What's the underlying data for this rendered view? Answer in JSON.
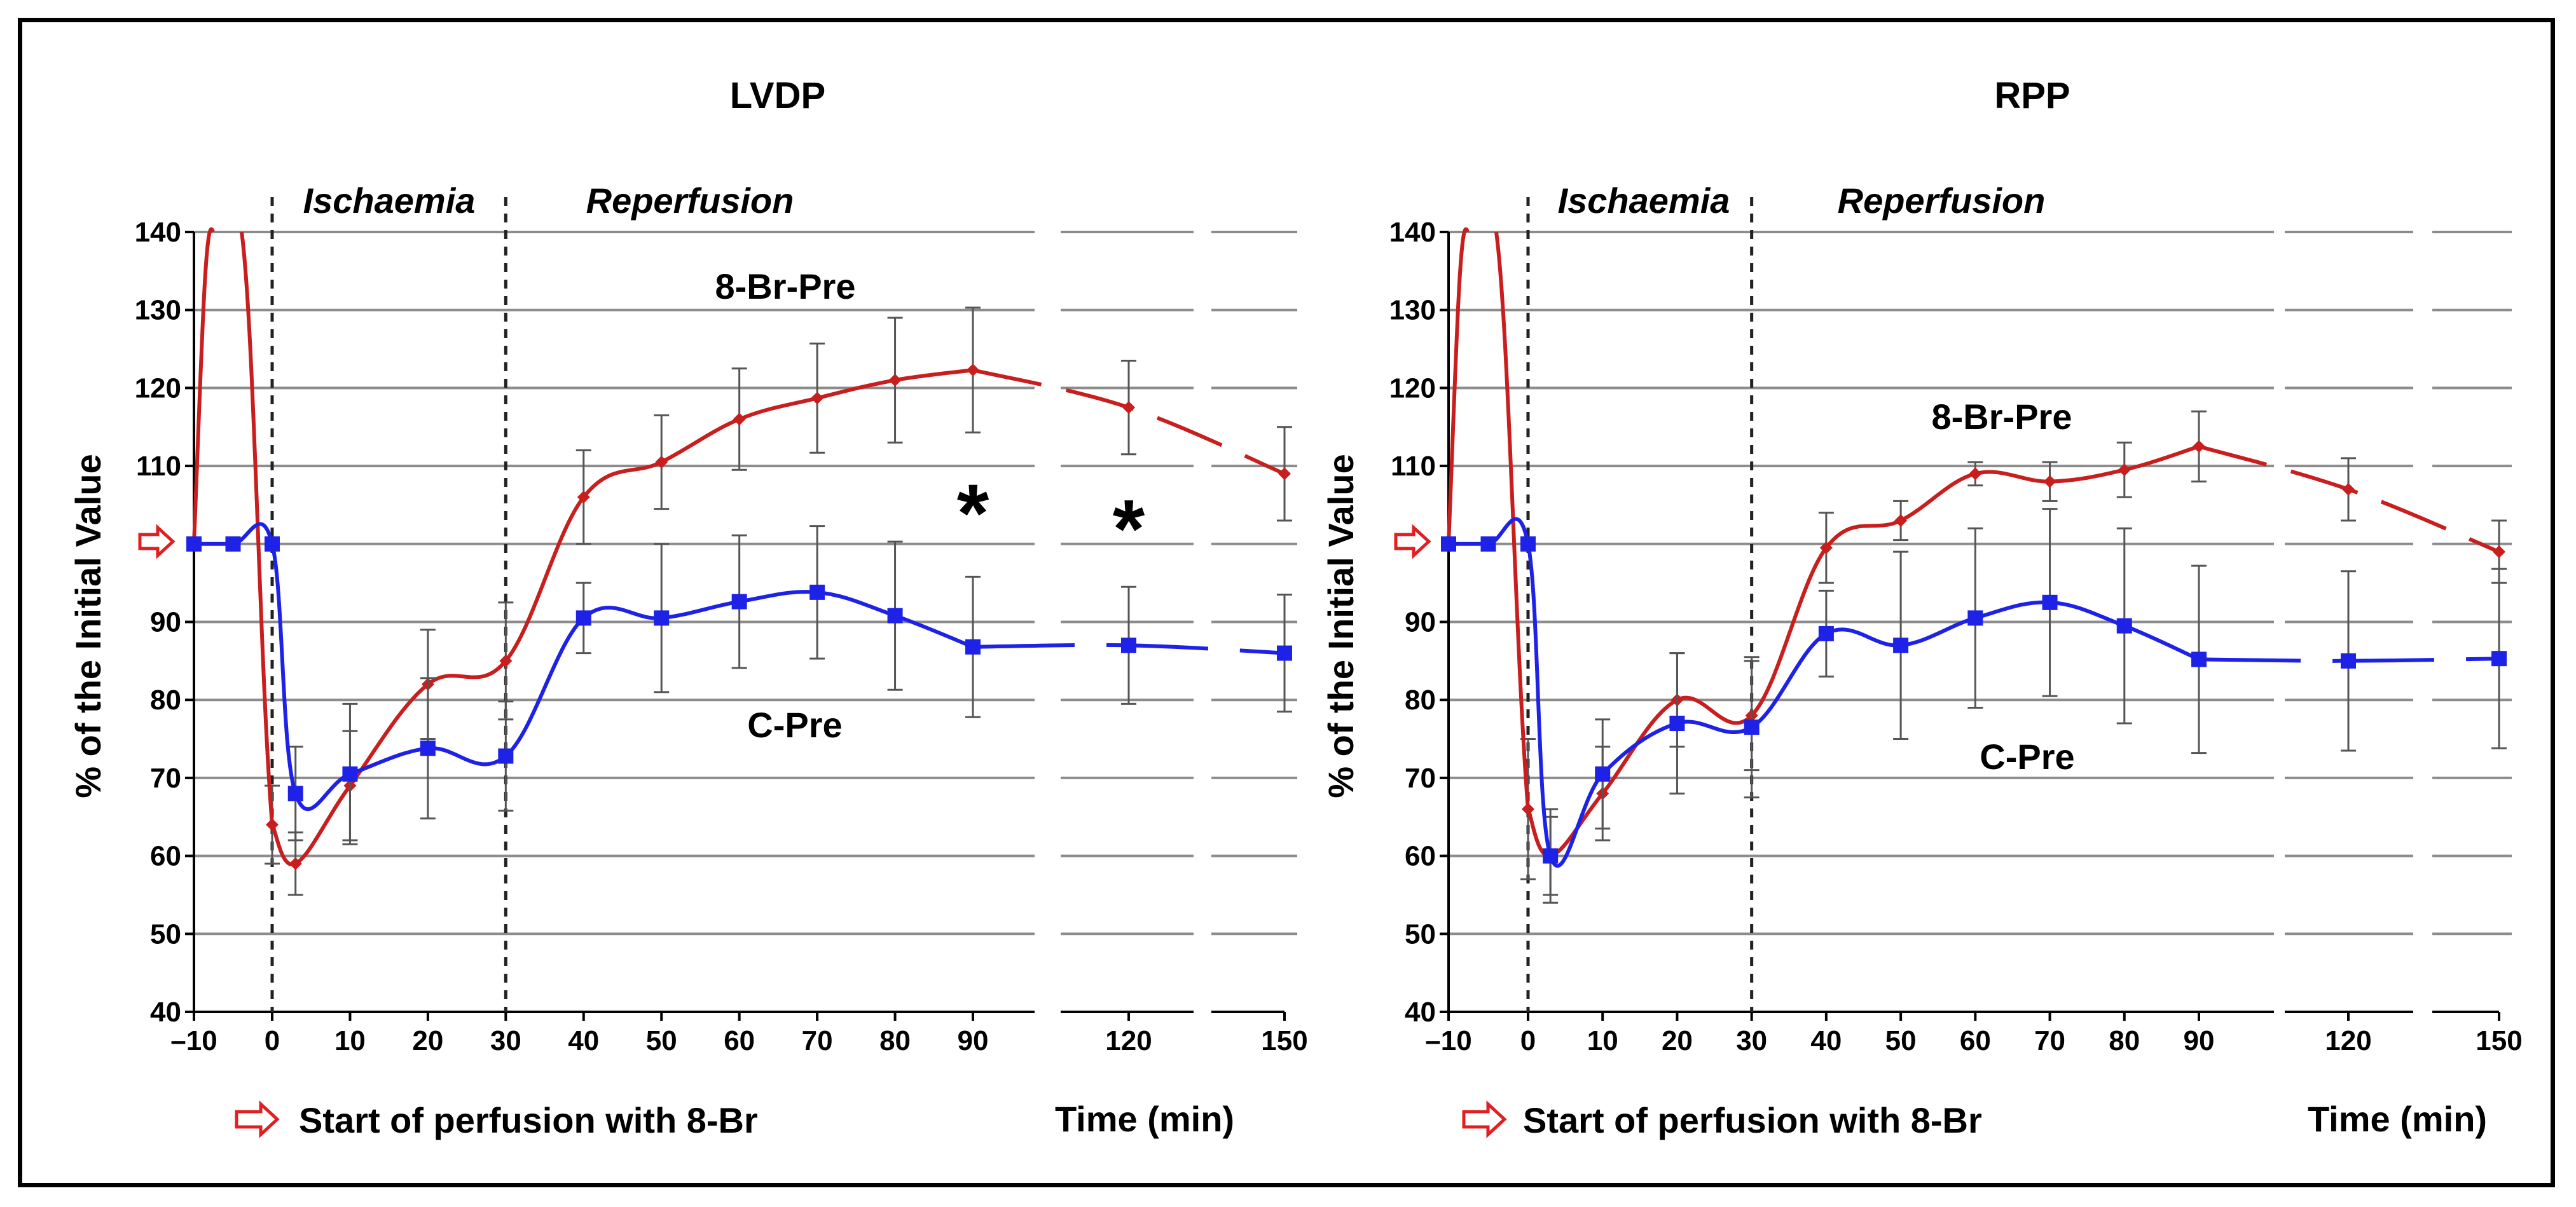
{
  "chart_data": [
    {
      "type": "line",
      "title": "LVDP",
      "ylabel": "% of the Initial Value",
      "xlabel": "Time (min)",
      "ylim": [
        40,
        140
      ],
      "yticks": [
        "40",
        "50",
        "60",
        "70",
        "80",
        "90",
        "110",
        "120",
        "130",
        "140"
      ],
      "xticks": [
        {
          "v": -10,
          "label": "–10"
        },
        {
          "v": 0,
          "label": "0"
        },
        {
          "v": 10,
          "label": "10"
        },
        {
          "v": 20,
          "label": "20"
        },
        {
          "v": 30,
          "label": "30"
        },
        {
          "v": 40,
          "label": "40"
        },
        {
          "v": 50,
          "label": "50"
        },
        {
          "v": 60,
          "label": "60"
        },
        {
          "v": 70,
          "label": "70"
        },
        {
          "v": 80,
          "label": "80"
        },
        {
          "v": 90,
          "label": "90"
        },
        {
          "v": 120,
          "label": "120"
        },
        {
          "v": 150,
          "label": "150"
        }
      ],
      "phases": {
        "ischaemia": "Ischaemia",
        "reperfusion": "Reperfusion"
      },
      "reference_value": 100,
      "start_note": "Start of perfusion with 8-Br",
      "series": [
        {
          "name": "8-Br-Pre",
          "color": "#c81e1e",
          "marker": "diamond",
          "x": [
            -10,
            0,
            3,
            10,
            20,
            30,
            40,
            50,
            60,
            70,
            80,
            90,
            120,
            150
          ],
          "y": [
            100,
            64,
            59,
            69,
            82,
            85,
            106,
            110.5,
            116,
            118.7,
            121,
            122.3,
            117.5,
            109
          ],
          "err": [
            0,
            5,
            4,
            7,
            7,
            7.5,
            6,
            6,
            6.5,
            7,
            8,
            8,
            6,
            6
          ]
        },
        {
          "name": "C-Pre",
          "color": "#1e22e6",
          "marker": "square",
          "x": [
            -10,
            -5,
            0,
            3,
            10,
            20,
            30,
            40,
            50,
            60,
            70,
            80,
            90,
            120,
            150
          ],
          "y": [
            100,
            100,
            100,
            68,
            70.5,
            73.8,
            72.8,
            90.5,
            90.5,
            92.6,
            93.8,
            90.8,
            86.8,
            87,
            86
          ],
          "err": [
            0,
            0,
            0,
            6,
            9,
            9,
            7,
            4.5,
            9.5,
            8.5,
            8.5,
            9.5,
            9,
            7.5,
            7.5
          ]
        }
      ],
      "significance": [
        {
          "x": 90,
          "y": 106,
          "label": "*"
        },
        {
          "x": 120,
          "y": 104,
          "label": "*"
        }
      ]
    },
    {
      "type": "line",
      "title": "RPP",
      "ylabel": "% of the Initial Value",
      "xlabel": "Time (min)",
      "ylim": [
        40,
        140
      ],
      "yticks": [
        "40",
        "50",
        "60",
        "70",
        "80",
        "90",
        "110",
        "120",
        "130",
        "140"
      ],
      "xticks": [
        {
          "v": -10,
          "label": "–10"
        },
        {
          "v": 0,
          "label": "0"
        },
        {
          "v": 10,
          "label": "10"
        },
        {
          "v": 20,
          "label": "20"
        },
        {
          "v": 30,
          "label": "30"
        },
        {
          "v": 40,
          "label": "40"
        },
        {
          "v": 50,
          "label": "50"
        },
        {
          "v": 60,
          "label": "60"
        },
        {
          "v": 70,
          "label": "70"
        },
        {
          "v": 80,
          "label": "80"
        },
        {
          "v": 90,
          "label": "90"
        },
        {
          "v": 120,
          "label": "120"
        },
        {
          "v": 150,
          "label": "150"
        }
      ],
      "phases": {
        "ischaemia": "Ischaemia",
        "reperfusion": "Reperfusion"
      },
      "reference_value": 100,
      "start_note": "Start of perfusion with 8-Br",
      "series": [
        {
          "name": "8-Br-Pre",
          "color": "#c81e1e",
          "marker": "diamond",
          "x": [
            -10,
            0,
            3,
            10,
            20,
            30,
            40,
            50,
            60,
            70,
            80,
            90,
            120,
            150
          ],
          "y": [
            100,
            66,
            60,
            68,
            80,
            78,
            99.5,
            103,
            109,
            108,
            109.5,
            112.5,
            107,
            99
          ],
          "err": [
            0,
            9,
            5,
            6,
            6,
            7,
            4.5,
            2.5,
            1.5,
            2.5,
            3.5,
            4.5,
            4,
            4
          ]
        },
        {
          "name": "C-Pre",
          "color": "#1e22e6",
          "marker": "square",
          "x": [
            -10,
            -5,
            0,
            3,
            10,
            20,
            30,
            40,
            50,
            60,
            70,
            80,
            90,
            120,
            150
          ],
          "y": [
            100,
            100,
            100,
            60,
            70.5,
            77,
            76.5,
            88.5,
            87,
            90.5,
            92.5,
            89.5,
            85.2,
            85,
            85.3
          ],
          "err": [
            0,
            0,
            0,
            6,
            7,
            9,
            9,
            5.5,
            12,
            11.5,
            12,
            12.5,
            12,
            11.5,
            11.5
          ]
        }
      ],
      "significance": []
    }
  ]
}
